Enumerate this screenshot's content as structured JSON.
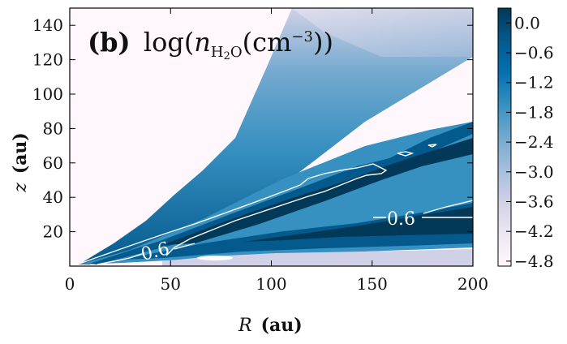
{
  "chart_data": {
    "type": "heatmap",
    "panel_label": "(b)",
    "title": "log(n_H2O(cm^-3))",
    "xlabel_var": "R",
    "xlabel_unit": "(au)",
    "ylabel_var": "z",
    "ylabel_unit": "(au)",
    "xlim": [
      0,
      200
    ],
    "ylim": [
      0,
      150
    ],
    "xticks": [
      "0",
      "50",
      "100",
      "150",
      "200"
    ],
    "yticks": [
      "20",
      "40",
      "60",
      "80",
      "100",
      "120",
      "140"
    ],
    "colorbar": {
      "range": [
        -4.9,
        0.3
      ],
      "ticks": [
        "0.0",
        "−0.6",
        "−1.2",
        "−1.8",
        "−2.4",
        "−3.0",
        "−3.6",
        "−4.2",
        "−4.8"
      ],
      "colormap": "PuBu",
      "colors": [
        "#fff7fb",
        "#ece7f2",
        "#d0d1e6",
        "#a6bddb",
        "#74a9cf",
        "#3690c0",
        "#0570b0",
        "#045a8d",
        "#023858"
      ]
    },
    "contour_level": "0.6",
    "contour_labels": [
      {
        "text": "0.6",
        "R": 44,
        "z": 10
      },
      {
        "text": "0.6",
        "R": 166,
        "z": 28
      }
    ]
  }
}
